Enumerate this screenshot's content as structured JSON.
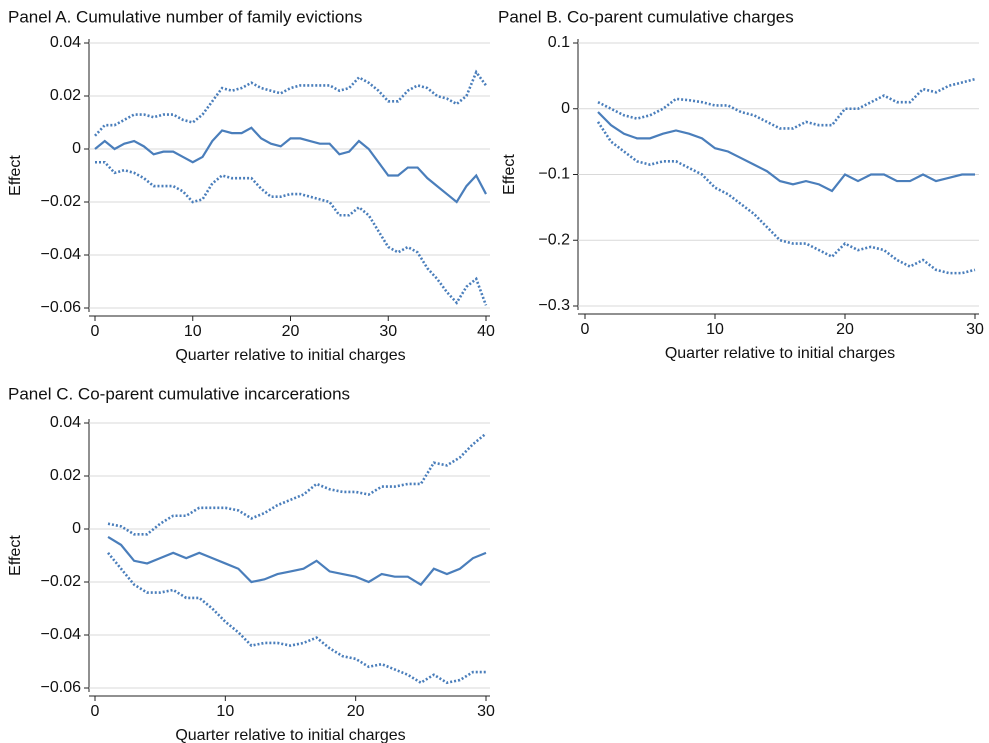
{
  "chart_data": [
    {
      "type": "line",
      "title": "Panel A. Cumulative number of family evictions",
      "x_label": "Quarter relative to initial charges",
      "y_label": "Effect",
      "x": [
        0,
        1,
        2,
        3,
        4,
        5,
        6,
        7,
        8,
        9,
        10,
        11,
        12,
        13,
        14,
        15,
        16,
        17,
        18,
        19,
        20,
        21,
        22,
        23,
        24,
        25,
        26,
        27,
        28,
        29,
        30,
        31,
        32,
        33,
        34,
        35,
        36,
        37,
        38,
        39,
        40
      ],
      "xlim": [
        0,
        40
      ],
      "xticks": [
        0,
        10,
        20,
        30,
        40
      ],
      "ylim": [
        -0.06,
        0.04
      ],
      "yticks": [
        {
          "value": -0.06,
          "label": "−0.06"
        },
        {
          "value": -0.04,
          "label": "−0.04"
        },
        {
          "value": -0.02,
          "label": "−0.02"
        },
        0,
        0.02,
        0.04
      ],
      "grid": true,
      "series": [
        {
          "style": "solid",
          "color": "#4a7ebb",
          "values": [
            0,
            0.003,
            0,
            0.002,
            0.003,
            0.001,
            -0.002,
            -0.001,
            -0.001,
            -0.003,
            -0.005,
            -0.003,
            0.003,
            0.007,
            0.006,
            0.006,
            0.008,
            0.004,
            0.002,
            0.001,
            0.004,
            0.004,
            0.003,
            0.002,
            0.002,
            -0.002,
            -0.001,
            0.003,
            0,
            -0.005,
            -0.01,
            -0.01,
            -0.007,
            -0.007,
            -0.011,
            -0.014,
            -0.017,
            -0.02,
            -0.014,
            -0.01,
            -0.017
          ]
        },
        {
          "style": "dotted",
          "color": "#4a7ebb",
          "values": [
            0.005,
            0.009,
            0.009,
            0.011,
            0.013,
            0.013,
            0.012,
            0.013,
            0.013,
            0.011,
            0.01,
            0.013,
            0.018,
            0.023,
            0.022,
            0.023,
            0.025,
            0.023,
            0.022,
            0.021,
            0.023,
            0.024,
            0.024,
            0.024,
            0.024,
            0.022,
            0.023,
            0.027,
            0.025,
            0.022,
            0.018,
            0.018,
            0.022,
            0.024,
            0.023,
            0.02,
            0.019,
            0.017,
            0.02,
            0.029,
            0.024
          ]
        },
        {
          "style": "dotted",
          "color": "#4a7ebb",
          "values": [
            -0.005,
            -0.005,
            -0.009,
            -0.008,
            -0.009,
            -0.011,
            -0.014,
            -0.014,
            -0.014,
            -0.016,
            -0.02,
            -0.019,
            -0.013,
            -0.01,
            -0.011,
            -0.011,
            -0.011,
            -0.015,
            -0.018,
            -0.018,
            -0.017,
            -0.017,
            -0.018,
            -0.019,
            -0.02,
            -0.025,
            -0.025,
            -0.022,
            -0.025,
            -0.031,
            -0.037,
            -0.039,
            -0.037,
            -0.039,
            -0.045,
            -0.049,
            -0.054,
            -0.058,
            -0.052,
            -0.049,
            -0.059
          ]
        }
      ]
    },
    {
      "type": "line",
      "title": "Panel B. Co-parent cumulative charges",
      "x_label": "Quarter relative to initial charges",
      "y_label": "Effect",
      "x": [
        1,
        2,
        3,
        4,
        5,
        6,
        7,
        8,
        9,
        10,
        11,
        12,
        13,
        14,
        15,
        16,
        17,
        18,
        19,
        20,
        21,
        22,
        23,
        24,
        25,
        26,
        27,
        28,
        29,
        30
      ],
      "xlim": [
        0,
        30
      ],
      "xticks": [
        0,
        10,
        20,
        30
      ],
      "ylim": [
        -0.3,
        0.1
      ],
      "yticks": [
        {
          "value": -0.3,
          "label": "−0.3"
        },
        {
          "value": -0.2,
          "label": "−0.2"
        },
        {
          "value": -0.1,
          "label": "−0.1"
        },
        0,
        0.1
      ],
      "grid": true,
      "series": [
        {
          "style": "solid",
          "color": "#4a7ebb",
          "values": [
            -0.005,
            -0.025,
            -0.038,
            -0.045,
            -0.045,
            -0.038,
            -0.033,
            -0.038,
            -0.045,
            -0.06,
            -0.065,
            -0.075,
            -0.085,
            -0.095,
            -0.11,
            -0.115,
            -0.11,
            -0.115,
            -0.125,
            -0.1,
            -0.11,
            -0.1,
            -0.1,
            -0.11,
            -0.11,
            -0.1,
            -0.11,
            -0.105,
            -0.1,
            -0.1
          ]
        },
        {
          "style": "dotted",
          "color": "#4a7ebb",
          "values": [
            0.01,
            0,
            -0.01,
            -0.015,
            -0.01,
            0,
            0.015,
            0.013,
            0.01,
            0.005,
            0.005,
            -0.005,
            -0.01,
            -0.02,
            -0.03,
            -0.03,
            -0.02,
            -0.025,
            -0.025,
            0,
            0,
            0.01,
            0.02,
            0.01,
            0.01,
            0.03,
            0.025,
            0.035,
            0.04,
            0.045
          ]
        },
        {
          "style": "dotted",
          "color": "#4a7ebb",
          "values": [
            -0.02,
            -0.05,
            -0.065,
            -0.08,
            -0.085,
            -0.08,
            -0.08,
            -0.09,
            -0.1,
            -0.12,
            -0.13,
            -0.145,
            -0.16,
            -0.18,
            -0.2,
            -0.205,
            -0.205,
            -0.215,
            -0.225,
            -0.205,
            -0.215,
            -0.21,
            -0.215,
            -0.23,
            -0.24,
            -0.23,
            -0.245,
            -0.25,
            -0.25,
            -0.245
          ]
        }
      ]
    },
    {
      "type": "line",
      "title": "Panel C. Co-parent cumulative incarcerations",
      "x_label": "Quarter relative to initial charges",
      "y_label": "Effect",
      "x": [
        1,
        2,
        3,
        4,
        5,
        6,
        7,
        8,
        9,
        10,
        11,
        12,
        13,
        14,
        15,
        16,
        17,
        18,
        19,
        20,
        21,
        22,
        23,
        24,
        25,
        26,
        27,
        28,
        29,
        30
      ],
      "xlim": [
        0,
        30
      ],
      "xticks": [
        0,
        10,
        20,
        30
      ],
      "ylim": [
        -0.06,
        0.04
      ],
      "yticks": [
        {
          "value": -0.06,
          "label": "−0.06"
        },
        {
          "value": -0.04,
          "label": "−0.04"
        },
        {
          "value": -0.02,
          "label": "−0.02"
        },
        0,
        0.02,
        0.04
      ],
      "grid": true,
      "series": [
        {
          "style": "solid",
          "color": "#4a7ebb",
          "values": [
            -0.003,
            -0.006,
            -0.012,
            -0.013,
            -0.011,
            -0.009,
            -0.011,
            -0.009,
            -0.011,
            -0.013,
            -0.015,
            -0.02,
            -0.019,
            -0.017,
            -0.016,
            -0.015,
            -0.012,
            -0.016,
            -0.017,
            -0.018,
            -0.02,
            -0.017,
            -0.018,
            -0.018,
            -0.021,
            -0.015,
            -0.017,
            -0.015,
            -0.011,
            -0.009
          ]
        },
        {
          "style": "dotted",
          "color": "#4a7ebb",
          "values": [
            0.002,
            0.001,
            -0.002,
            -0.002,
            0.002,
            0.005,
            0.005,
            0.008,
            0.008,
            0.008,
            0.007,
            0.004,
            0.006,
            0.009,
            0.011,
            0.013,
            0.017,
            0.015,
            0.014,
            0.014,
            0.013,
            0.016,
            0.016,
            0.017,
            0.017,
            0.025,
            0.024,
            0.027,
            0.032,
            0.036
          ]
        },
        {
          "style": "dotted",
          "color": "#4a7ebb",
          "values": [
            -0.009,
            -0.015,
            -0.021,
            -0.024,
            -0.024,
            -0.023,
            -0.026,
            -0.026,
            -0.03,
            -0.035,
            -0.039,
            -0.044,
            -0.043,
            -0.043,
            -0.044,
            -0.043,
            -0.041,
            -0.045,
            -0.048,
            -0.049,
            -0.052,
            -0.051,
            -0.053,
            -0.055,
            -0.058,
            -0.055,
            -0.058,
            -0.057,
            -0.054,
            -0.054
          ]
        }
      ]
    }
  ]
}
